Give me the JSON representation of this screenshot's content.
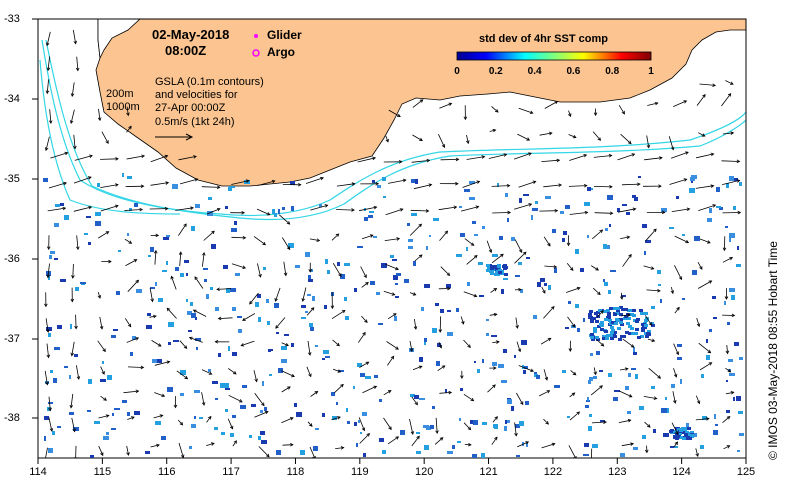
{
  "header": {
    "date": "02-May-2018",
    "time": "08:00Z"
  },
  "legend": {
    "glider": "Glider",
    "argo": "Argo",
    "glider_color": "#ff00ff",
    "argo_color": "#ff00ff"
  },
  "info": {
    "line1": "GSLA (0.1m contours)",
    "line2": "and velocities for",
    "line3": "27-Apr 00:00Z",
    "line4": "0.5m/s (1kt 24h)",
    "depth_200": "200m",
    "depth_1000": "1000m"
  },
  "colorbar": {
    "title": "std dev of 4hr SST comp",
    "labels": [
      "0",
      "0.2",
      "0.4",
      "0.6",
      "0.8",
      "1"
    ]
  },
  "axes": {
    "x_ticks": [
      "114",
      "115",
      "116",
      "117",
      "118",
      "119",
      "120",
      "121",
      "122",
      "123",
      "124",
      "125"
    ],
    "y_ticks": [
      "-33",
      "-34",
      "-35",
      "-36",
      "-37",
      "-38"
    ]
  },
  "credit": "© IMOS 03-May-2018 08:55 Hobart Time",
  "colors": {
    "land": "#fbc490",
    "isobath": "#33d6e6",
    "sst_low": "#1a3ab0",
    "sst_mid": "#24a0e0"
  }
}
